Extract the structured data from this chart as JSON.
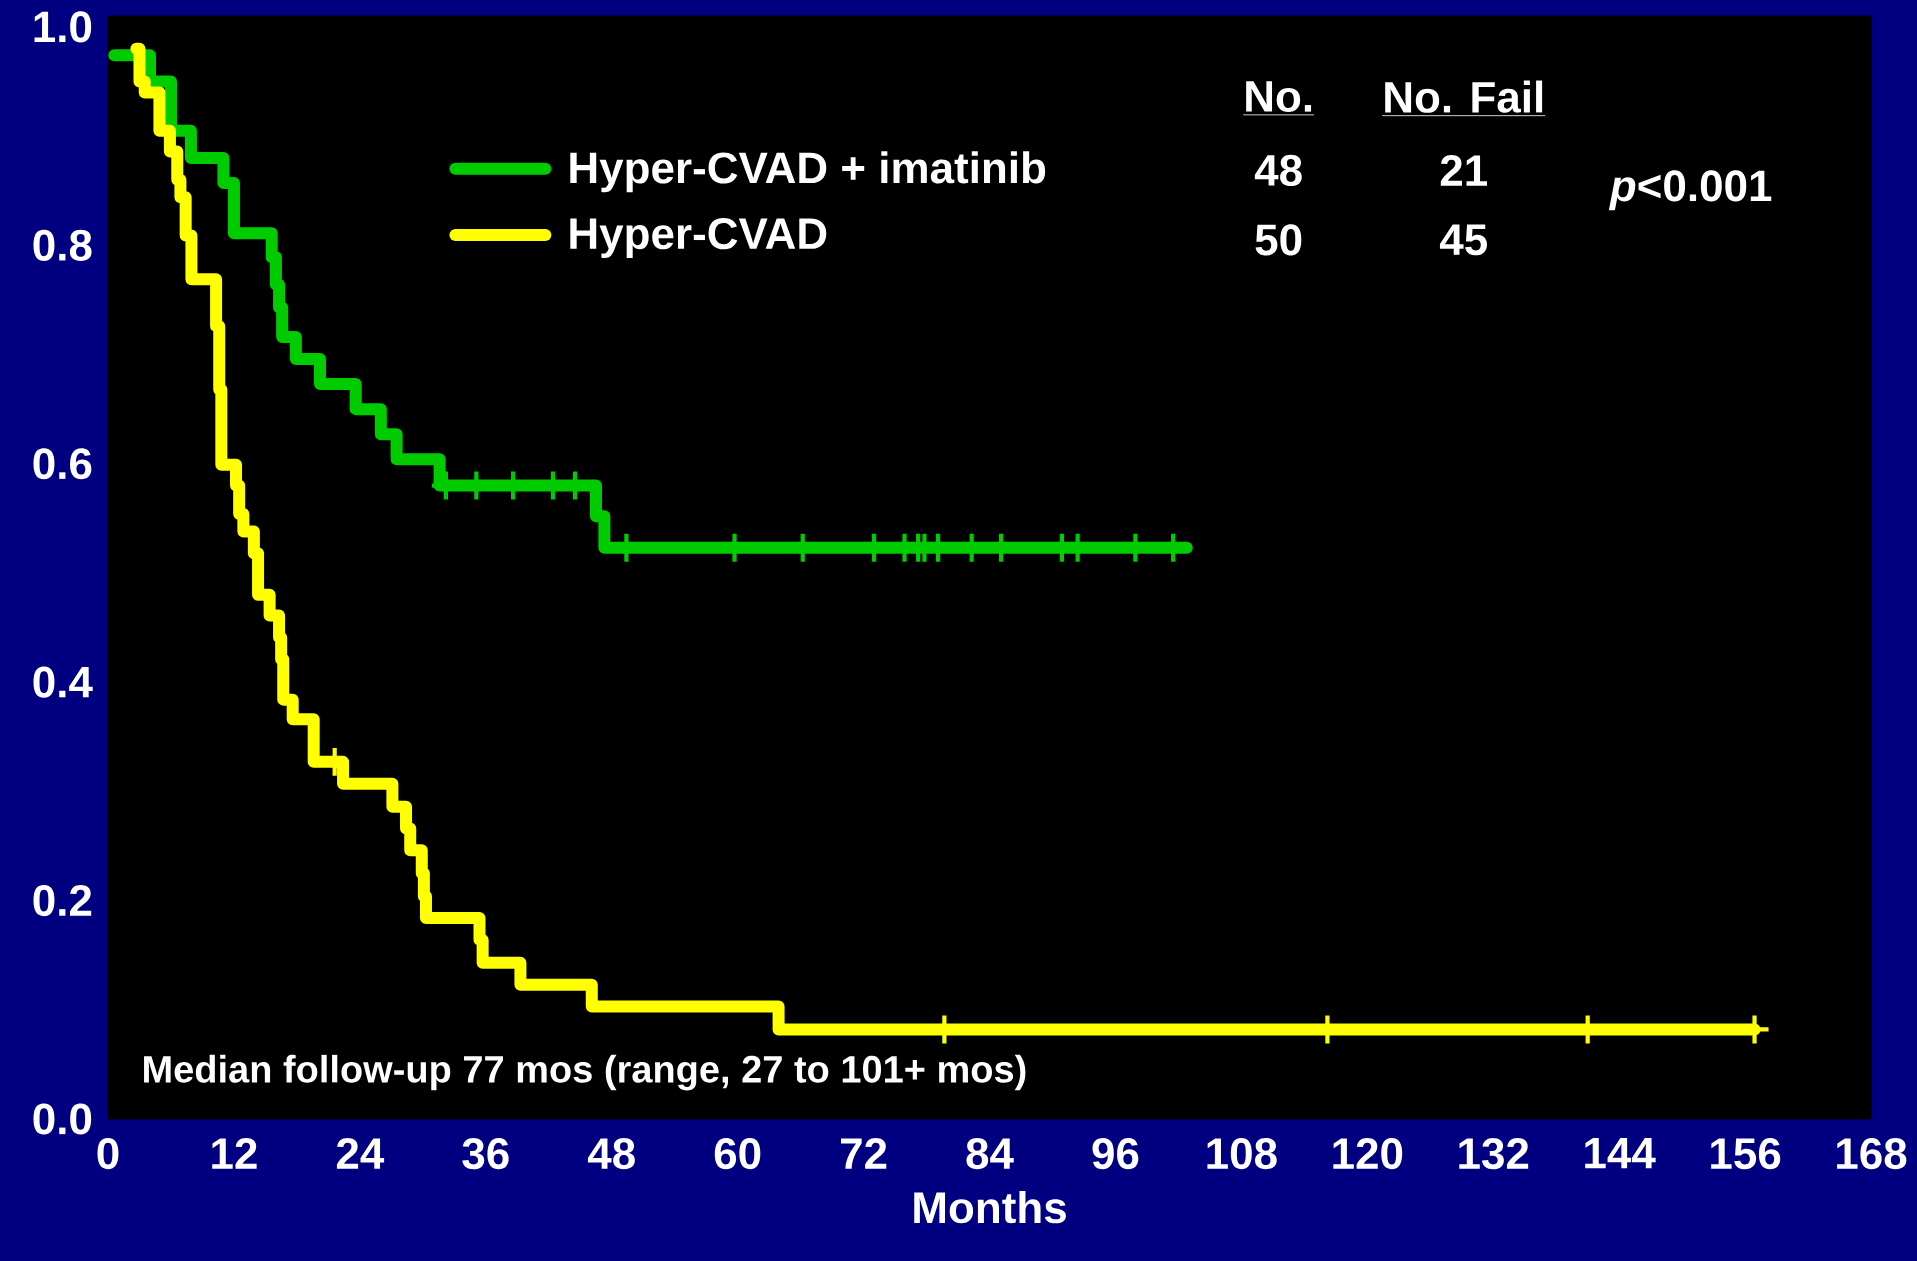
{
  "chart_data": {
    "type": "step",
    "xlabel": "Months",
    "xlim": [
      0,
      168
    ],
    "xticks": [
      0,
      12,
      24,
      36,
      48,
      60,
      72,
      84,
      96,
      108,
      120,
      132,
      144,
      156,
      168
    ],
    "ylim": [
      0,
      1.01
    ],
    "yticks": [
      {
        "value": 0,
        "label": "0.0"
      },
      0.2,
      0.4,
      0.6,
      0.8,
      {
        "value": 1,
        "label": "1.0"
      }
    ],
    "legend": "top",
    "annotations": [
      "No.",
      "No. Fail",
      "48",
      "21",
      "50",
      "45",
      "*p*<0.001",
      "Median follow-up 77 mos (range, 27 to 101+ mos)"
    ],
    "series": [
      {
        "name": "Hyper-CVAD + imatinib",
        "color": "#00cc00",
        "x": [
          0.6,
          4.0,
          6.0,
          7.9,
          11.0,
          12.0,
          15.6,
          16.0,
          16.3,
          16.6,
          17.9,
          20.2,
          23.6,
          26.0,
          27.5,
          31.6,
          46.5,
          47.3,
          102.8
        ],
        "values": [
          0.974,
          0.95,
          0.905,
          0.88,
          0.857,
          0.811,
          0.789,
          0.764,
          0.743,
          0.716,
          0.696,
          0.673,
          0.65,
          0.627,
          0.604,
          0.58,
          0.552,
          0.523,
          0.523
        ]
      },
      {
        "name": "Hyper-CVAD",
        "color": "#ffff00",
        "x": [
          2.7,
          3.0,
          3.5,
          4.9,
          5.9,
          6.6,
          6.9,
          7.4,
          7.95,
          10.3,
          10.6,
          10.8,
          12.2,
          12.5,
          12.9,
          13.9,
          14.3,
          15.4,
          16.3,
          16.5,
          16.7,
          17.6,
          19.6,
          22.4,
          27.1,
          28.4,
          28.8,
          29.9,
          30.1,
          30.3,
          35.4,
          35.7,
          39.3,
          46.1,
          63.9,
          156.9
        ],
        "values": [
          0.98,
          0.95,
          0.94,
          0.905,
          0.886,
          0.86,
          0.844,
          0.809,
          0.769,
          0.726,
          0.668,
          0.599,
          0.58,
          0.554,
          0.538,
          0.518,
          0.48,
          0.461,
          0.441,
          0.421,
          0.384,
          0.366,
          0.327,
          0.307,
          0.286,
          0.266,
          0.246,
          0.225,
          0.204,
          0.184,
          0.164,
          0.143,
          0.123,
          0.103,
          0.082,
          0.082
        ]
      },
      {
        "type": "scatter",
        "marker": "cross",
        "color": "#00cc00",
        "x": [
          32.2,
          35.1,
          38.6,
          42.4,
          44.5,
          49.4,
          59.7,
          66.2,
          73.0,
          75.9,
          77.2,
          77.8,
          79.1,
          82.3,
          85.1,
          90.9,
          92.4,
          97.9,
          101.5
        ],
        "values": [
          0.58,
          0.58,
          0.58,
          0.58,
          0.58,
          0.523,
          0.523,
          0.523,
          0.523,
          0.523,
          0.523,
          0.523,
          0.523,
          0.523,
          0.523,
          0.523,
          0.523,
          0.523,
          0.523
        ]
      },
      {
        "type": "scatter",
        "marker": "cross",
        "color": "#ffff00",
        "x": [
          21.6,
          79.7,
          116.2,
          141.0,
          156.9
        ],
        "values": [
          0.327,
          0.082,
          0.082,
          0.082,
          0.082
        ]
      }
    ]
  }
}
